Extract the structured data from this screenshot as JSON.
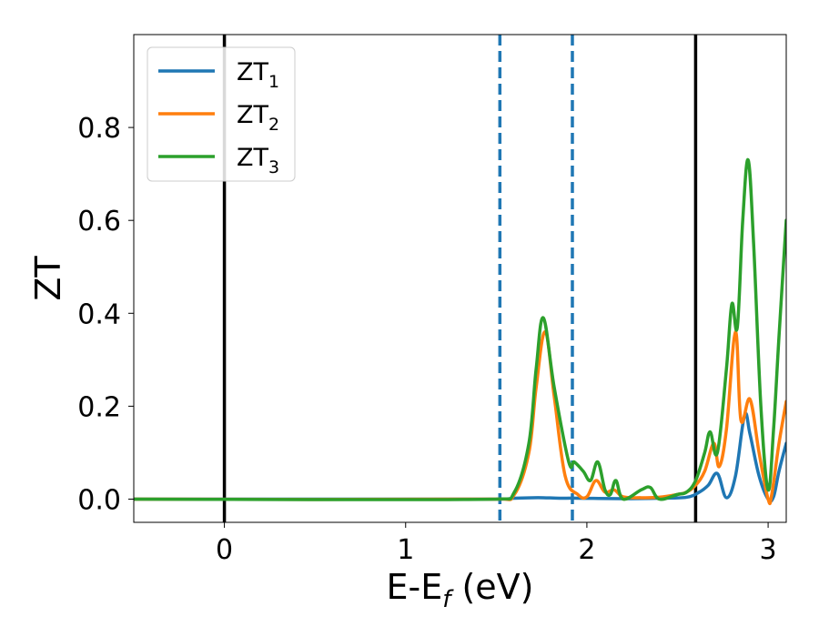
{
  "chart_data": {
    "type": "line",
    "xlabel_main": "E-E",
    "xlabel_sub": "f",
    "xlabel_tail": " (eV)",
    "ylabel": "ZT",
    "xlim": [
      -0.5,
      3.1
    ],
    "ylim": [
      -0.05,
      1.0
    ],
    "xticks": [
      0,
      1,
      2,
      3
    ],
    "xtick_labels": [
      "0",
      "1",
      "2",
      "3"
    ],
    "yticks": [
      0.0,
      0.2,
      0.4,
      0.6,
      0.8
    ],
    "ytick_labels": [
      "0.0",
      "0.2",
      "0.4",
      "0.6",
      "0.8"
    ],
    "grid": false,
    "legend_position": "top-left",
    "vertical_lines": [
      {
        "x": 0.0,
        "style": "solid",
        "color": "#000000"
      },
      {
        "x": 2.6,
        "style": "solid",
        "color": "#000000"
      },
      {
        "x": 1.52,
        "style": "dashed",
        "color": "#1f77b4"
      },
      {
        "x": 1.92,
        "style": "dashed",
        "color": "#1f77b4"
      }
    ],
    "series": [
      {
        "name_main": "ZT",
        "name_sub": "1",
        "color": "#1f77b4",
        "x": [
          -0.5,
          1.5,
          1.6,
          1.7,
          1.76,
          1.85,
          1.95,
          2.2,
          2.4,
          2.55,
          2.62,
          2.67,
          2.72,
          2.77,
          2.82,
          2.87,
          2.9,
          2.95,
          3.0,
          3.03,
          3.06,
          3.1
        ],
        "y": [
          0.0,
          0.0,
          0.002,
          0.003,
          0.003,
          0.002,
          0.002,
          0.001,
          0.002,
          0.004,
          0.015,
          0.03,
          0.055,
          0.003,
          0.05,
          0.18,
          0.14,
          0.05,
          0.0,
          0.005,
          0.06,
          0.12
        ]
      },
      {
        "name_main": "ZT",
        "name_sub": "2",
        "color": "#ff7f0e",
        "x": [
          -0.5,
          1.5,
          1.6,
          1.68,
          1.72,
          1.77,
          1.82,
          1.88,
          1.95,
          2.0,
          2.05,
          2.1,
          2.15,
          2.2,
          2.3,
          2.4,
          2.5,
          2.55,
          2.6,
          2.65,
          2.7,
          2.73,
          2.77,
          2.82,
          2.85,
          2.9,
          2.95,
          3.0,
          3.02,
          3.06,
          3.1
        ],
        "y": [
          0.0,
          0.0,
          0.01,
          0.1,
          0.24,
          0.36,
          0.22,
          0.05,
          0.01,
          0.005,
          0.04,
          0.015,
          0.02,
          0.005,
          0.003,
          0.004,
          0.01,
          0.015,
          0.03,
          0.06,
          0.12,
          0.07,
          0.15,
          0.36,
          0.17,
          0.215,
          0.1,
          0.0,
          0.01,
          0.12,
          0.21
        ]
      },
      {
        "name_main": "ZT",
        "name_sub": "3",
        "color": "#2ca02c",
        "x": [
          -0.5,
          1.5,
          1.6,
          1.68,
          1.72,
          1.76,
          1.82,
          1.9,
          1.93,
          1.98,
          2.02,
          2.06,
          2.1,
          2.13,
          2.16,
          2.2,
          2.3,
          2.35,
          2.4,
          2.5,
          2.55,
          2.6,
          2.65,
          2.68,
          2.72,
          2.77,
          2.8,
          2.83,
          2.86,
          2.89,
          2.92,
          2.96,
          3.0,
          3.03,
          3.06,
          3.1
        ],
        "y": [
          0.0,
          0.0,
          0.015,
          0.12,
          0.28,
          0.39,
          0.24,
          0.08,
          0.08,
          0.06,
          0.04,
          0.08,
          0.02,
          0.01,
          0.04,
          0.0,
          0.02,
          0.025,
          0.0,
          0.01,
          0.015,
          0.04,
          0.1,
          0.145,
          0.1,
          0.28,
          0.42,
          0.37,
          0.6,
          0.73,
          0.55,
          0.2,
          0.02,
          0.15,
          0.35,
          0.6
        ]
      }
    ]
  }
}
